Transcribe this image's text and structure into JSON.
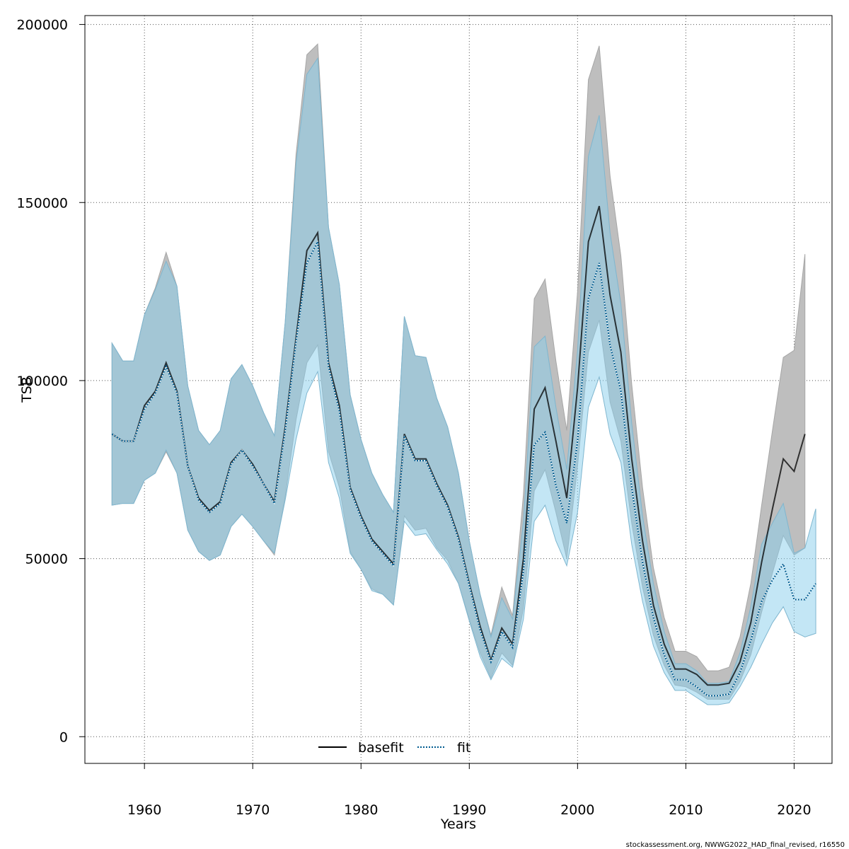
{
  "chart_data": {
    "type": "line",
    "xlabel": "Years",
    "ylabel": "TSB",
    "xlim": [
      1954.5,
      2023.5
    ],
    "ylim": [
      -7500,
      202500
    ],
    "xticks": [
      1960,
      1970,
      1980,
      1990,
      2000,
      2010,
      2020
    ],
    "xtick_labels": [
      "1960",
      "1970",
      "1980",
      "1990",
      "2000",
      "2010",
      "2020"
    ],
    "yticks": [
      0,
      50000,
      100000,
      150000,
      200000
    ],
    "ytick_labels": [
      "0",
      "50000",
      "100000",
      "150000",
      "200000"
    ],
    "grid": true,
    "legend_position": "bottom",
    "footer_text": "stockassessment.org, NWWG2022_HAD_final_revised, r16550",
    "series": [
      {
        "name": "basefit",
        "color": "#000000",
        "band_color": "#bebebe",
        "line_style": "solid",
        "x": [
          1957,
          1958,
          1959,
          1960,
          1961,
          1962,
          1963,
          1964,
          1965,
          1966,
          1967,
          1968,
          1969,
          1970,
          1971,
          1972,
          1973,
          1974,
          1975,
          1976,
          1977,
          1978,
          1979,
          1980,
          1981,
          1982,
          1983,
          1984,
          1985,
          1986,
          1987,
          1988,
          1989,
          1990,
          1991,
          1992,
          1993,
          1994,
          1995,
          1996,
          1997,
          1998,
          1999,
          2000,
          2001,
          2002,
          2003,
          2004,
          2005,
          2006,
          2007,
          2008,
          2009,
          2010,
          2011,
          2012,
          2013,
          2014,
          2015,
          2016,
          2017,
          2018,
          2019,
          2020,
          2021
        ],
        "values": [
          85000,
          83000,
          83000,
          93000,
          97000,
          105000,
          97000,
          76000,
          67000,
          63500,
          66000,
          77000,
          80500,
          76500,
          71000,
          66000,
          87000,
          112000,
          136500,
          141500,
          105000,
          93000,
          70000,
          62000,
          55500,
          52000,
          48500,
          85000,
          78000,
          78000,
          71000,
          65000,
          56000,
          43000,
          31000,
          21500,
          30500,
          26000,
          50000,
          92000,
          98000,
          83000,
          67000,
          98000,
          139000,
          149000,
          124000,
          108000,
          78000,
          55000,
          37000,
          26000,
          19000,
          19000,
          17500,
          14500,
          14500,
          15000,
          21000,
          32000,
          49000,
          64000,
          78000,
          74500,
          85000
        ],
        "lower": [
          65000,
          65500,
          65500,
          72000,
          74000,
          80000,
          74000,
          58000,
          52000,
          49500,
          51000,
          59000,
          62500,
          59000,
          55000,
          51000,
          67500,
          89000,
          105000,
          110000,
          80000,
          70000,
          52000,
          47000,
          41500,
          40000,
          37000,
          62000,
          58000,
          58500,
          53000,
          49500,
          43000,
          33000,
          23500,
          16500,
          23500,
          20000,
          36000,
          69000,
          75000,
          63000,
          50000,
          76000,
          108000,
          117000,
          94000,
          83000,
          60000,
          42000,
          28500,
          20000,
          14500,
          14000,
          12500,
          10500,
          10500,
          10500,
          15500,
          23000,
          35000,
          46000,
          56500,
          51000,
          53000
        ],
        "upper": [
          110500,
          105500,
          105500,
          118500,
          126000,
          136000,
          126500,
          98500,
          86000,
          82000,
          86000,
          100500,
          104500,
          98500,
          91000,
          84500,
          116500,
          163500,
          191500,
          194500,
          143000,
          127000,
          96000,
          83500,
          74000,
          68000,
          63000,
          118000,
          107000,
          106500,
          95000,
          87000,
          74000,
          55000,
          40000,
          28500,
          42000,
          34000,
          68000,
          123000,
          128500,
          105500,
          86000,
          125000,
          184500,
          194000,
          157500,
          135000,
          99000,
          70000,
          47500,
          33500,
          24000,
          24000,
          22500,
          18500,
          18500,
          19500,
          28000,
          43000,
          65000,
          86000,
          106500,
          108500,
          135500
        ]
      },
      {
        "name": "fit",
        "color": "#005b8f",
        "band_color": "#87ceeb",
        "line_style": "dotted",
        "x": [
          1957,
          1958,
          1959,
          1960,
          1961,
          1962,
          1963,
          1964,
          1965,
          1966,
          1967,
          1968,
          1969,
          1970,
          1971,
          1972,
          1973,
          1974,
          1975,
          1976,
          1977,
          1978,
          1979,
          1980,
          1981,
          1982,
          1983,
          1984,
          1985,
          1986,
          1987,
          1988,
          1989,
          1990,
          1991,
          1992,
          1993,
          1994,
          1995,
          1996,
          1997,
          1998,
          1999,
          2000,
          2001,
          2002,
          2003,
          2004,
          2005,
          2006,
          2007,
          2008,
          2009,
          2010,
          2011,
          2012,
          2013,
          2014,
          2015,
          2016,
          2017,
          2018,
          2019,
          2020,
          2021,
          2022
        ],
        "values": [
          85000,
          83000,
          83000,
          92000,
          96500,
          104000,
          96500,
          76000,
          66500,
          63000,
          65500,
          76500,
          80500,
          76000,
          71000,
          65500,
          86000,
          111000,
          133000,
          139000,
          104000,
          91500,
          69500,
          61500,
          55000,
          51500,
          48000,
          84500,
          77500,
          77500,
          70500,
          64500,
          55500,
          42500,
          30000,
          21000,
          29500,
          25000,
          46500,
          82000,
          85500,
          70500,
          60000,
          83000,
          123000,
          133000,
          110000,
          97000,
          70000,
          49000,
          33500,
          23000,
          16000,
          16000,
          14000,
          11500,
          11500,
          12000,
          18000,
          27000,
          38000,
          44000,
          48500,
          38500,
          38500,
          43000
        ],
        "lower": [
          65000,
          65500,
          65500,
          72000,
          74000,
          80500,
          74000,
          58000,
          52000,
          49500,
          51000,
          59000,
          62500,
          59000,
          55000,
          51500,
          66500,
          83500,
          96500,
          102500,
          77000,
          67000,
          51500,
          47000,
          41000,
          40000,
          37000,
          60500,
          56500,
          57000,
          52500,
          48500,
          43000,
          32500,
          22500,
          16000,
          22000,
          19500,
          33000,
          60500,
          65000,
          55000,
          48000,
          63000,
          92500,
          101000,
          85000,
          77000,
          54000,
          38000,
          25500,
          18000,
          13000,
          13000,
          11000,
          9000,
          9000,
          9500,
          14000,
          19500,
          26000,
          32000,
          36500,
          29500,
          28000,
          29000
        ],
        "upper": [
          110500,
          105500,
          105500,
          118500,
          125500,
          133500,
          126500,
          98500,
          86000,
          82000,
          86000,
          100500,
          104500,
          98500,
          91000,
          84500,
          116500,
          161000,
          186000,
          190500,
          143000,
          127000,
          96000,
          83500,
          74000,
          68000,
          63000,
          118000,
          107000,
          106500,
          95000,
          87000,
          74000,
          55000,
          40000,
          28000,
          39000,
          33000,
          60500,
          109500,
          112500,
          92500,
          75000,
          108500,
          163000,
          174500,
          141500,
          121500,
          88000,
          62000,
          43000,
          29500,
          20500,
          20500,
          18500,
          15000,
          15000,
          15500,
          23500,
          36500,
          54000,
          60000,
          65500,
          51500,
          53000,
          64000
        ]
      }
    ]
  }
}
